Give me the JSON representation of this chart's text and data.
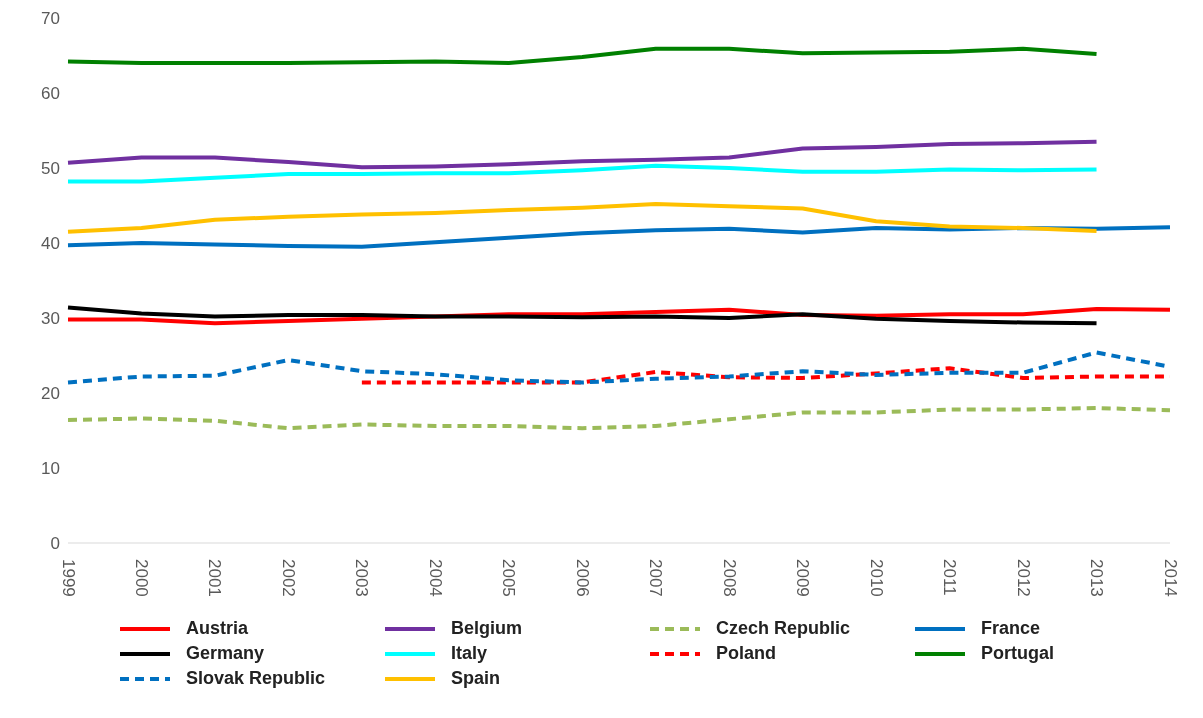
{
  "chart_data": {
    "type": "line",
    "categories": [
      "1999",
      "2000",
      "2001",
      "2002",
      "2003",
      "2004",
      "2005",
      "2006",
      "2007",
      "2008",
      "2009",
      "2010",
      "2011",
      "2012",
      "2013",
      "2014"
    ],
    "ylim": [
      0,
      70
    ],
    "yticks": [
      0,
      10,
      20,
      30,
      40,
      50,
      60,
      70
    ],
    "grid": false,
    "legend": "bottom",
    "marker": "none",
    "series": [
      {
        "name": "Austria",
        "color": "#ff0000",
        "line_style": "solid",
        "values": [
          29.8,
          29.8,
          29.3,
          29.6,
          29.9,
          30.2,
          30.5,
          30.5,
          30.8,
          31.1,
          30.4,
          30.3,
          30.5,
          30.5,
          31.2,
          31.1
        ]
      },
      {
        "name": "Belgium",
        "color": "#7030a0",
        "line_style": "solid",
        "values": [
          50.7,
          51.4,
          51.4,
          50.8,
          50.1,
          50.2,
          50.5,
          50.9,
          51.1,
          51.4,
          52.6,
          52.8,
          53.2,
          53.3,
          53.5,
          null
        ]
      },
      {
        "name": "Czech Republic",
        "color": "#9bbb59",
        "line_style": "dashed",
        "values": [
          16.4,
          16.6,
          16.3,
          15.3,
          15.8,
          15.6,
          15.6,
          15.3,
          15.6,
          16.5,
          17.4,
          17.4,
          17.8,
          17.8,
          18.0,
          17.7
        ]
      },
      {
        "name": "France",
        "color": "#0070c0",
        "line_style": "solid",
        "values": [
          39.7,
          40.0,
          39.8,
          39.6,
          39.5,
          40.1,
          40.7,
          41.3,
          41.7,
          41.9,
          41.4,
          42.0,
          41.8,
          42.0,
          41.9,
          42.1
        ]
      },
      {
        "name": "Germany",
        "color": "#000000",
        "line_style": "solid",
        "values": [
          31.4,
          30.6,
          30.2,
          30.4,
          30.4,
          30.2,
          30.2,
          30.1,
          30.2,
          30.0,
          30.5,
          29.9,
          29.6,
          29.4,
          29.3,
          null
        ]
      },
      {
        "name": "Italy",
        "color": "#00ffff",
        "line_style": "solid",
        "values": [
          48.2,
          48.2,
          48.7,
          49.2,
          49.2,
          49.3,
          49.3,
          49.7,
          50.3,
          50.0,
          49.5,
          49.5,
          49.8,
          49.7,
          49.8,
          null
        ]
      },
      {
        "name": "Poland",
        "color": "#ff0000",
        "line_style": "dashed",
        "values": [
          null,
          null,
          null,
          null,
          21.4,
          21.4,
          21.4,
          21.4,
          22.8,
          22.1,
          22.0,
          22.6,
          23.3,
          22.0,
          22.2,
          22.2
        ]
      },
      {
        "name": "Portugal",
        "color": "#008000",
        "line_style": "solid",
        "values": [
          64.2,
          64.0,
          64.0,
          64.0,
          64.1,
          64.2,
          64.0,
          64.8,
          65.9,
          65.9,
          65.3,
          65.4,
          65.5,
          65.9,
          65.2,
          null
        ]
      },
      {
        "name": "Slovak Republic",
        "color": "#0070c0",
        "line_style": "dashed",
        "values": [
          21.4,
          22.2,
          22.3,
          24.4,
          22.9,
          22.5,
          21.7,
          21.4,
          21.9,
          22.2,
          22.9,
          22.4,
          22.7,
          22.7,
          25.4,
          23.5
        ]
      },
      {
        "name": "Spain",
        "color": "#ffc000",
        "line_style": "solid",
        "values": [
          41.5,
          42.0,
          43.1,
          43.5,
          43.8,
          44.0,
          44.4,
          44.7,
          45.2,
          44.9,
          44.6,
          42.9,
          42.2,
          42.0,
          41.6,
          null
        ]
      }
    ]
  }
}
